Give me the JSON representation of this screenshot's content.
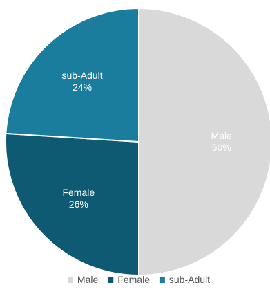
{
  "chart_data": {
    "type": "pie",
    "title": "",
    "start_angle_deg": 0,
    "direction": "clockwise",
    "legend_position": "bottom",
    "slices": [
      {
        "name": "Male",
        "value": 50,
        "label": "50%",
        "color": "#d9d9d9"
      },
      {
        "name": "Female",
        "value": 26,
        "label": "26%",
        "color": "#0e5a73"
      },
      {
        "name": "sub-Adult",
        "value": 24,
        "label": "24%",
        "color": "#1a7d9e"
      }
    ]
  }
}
